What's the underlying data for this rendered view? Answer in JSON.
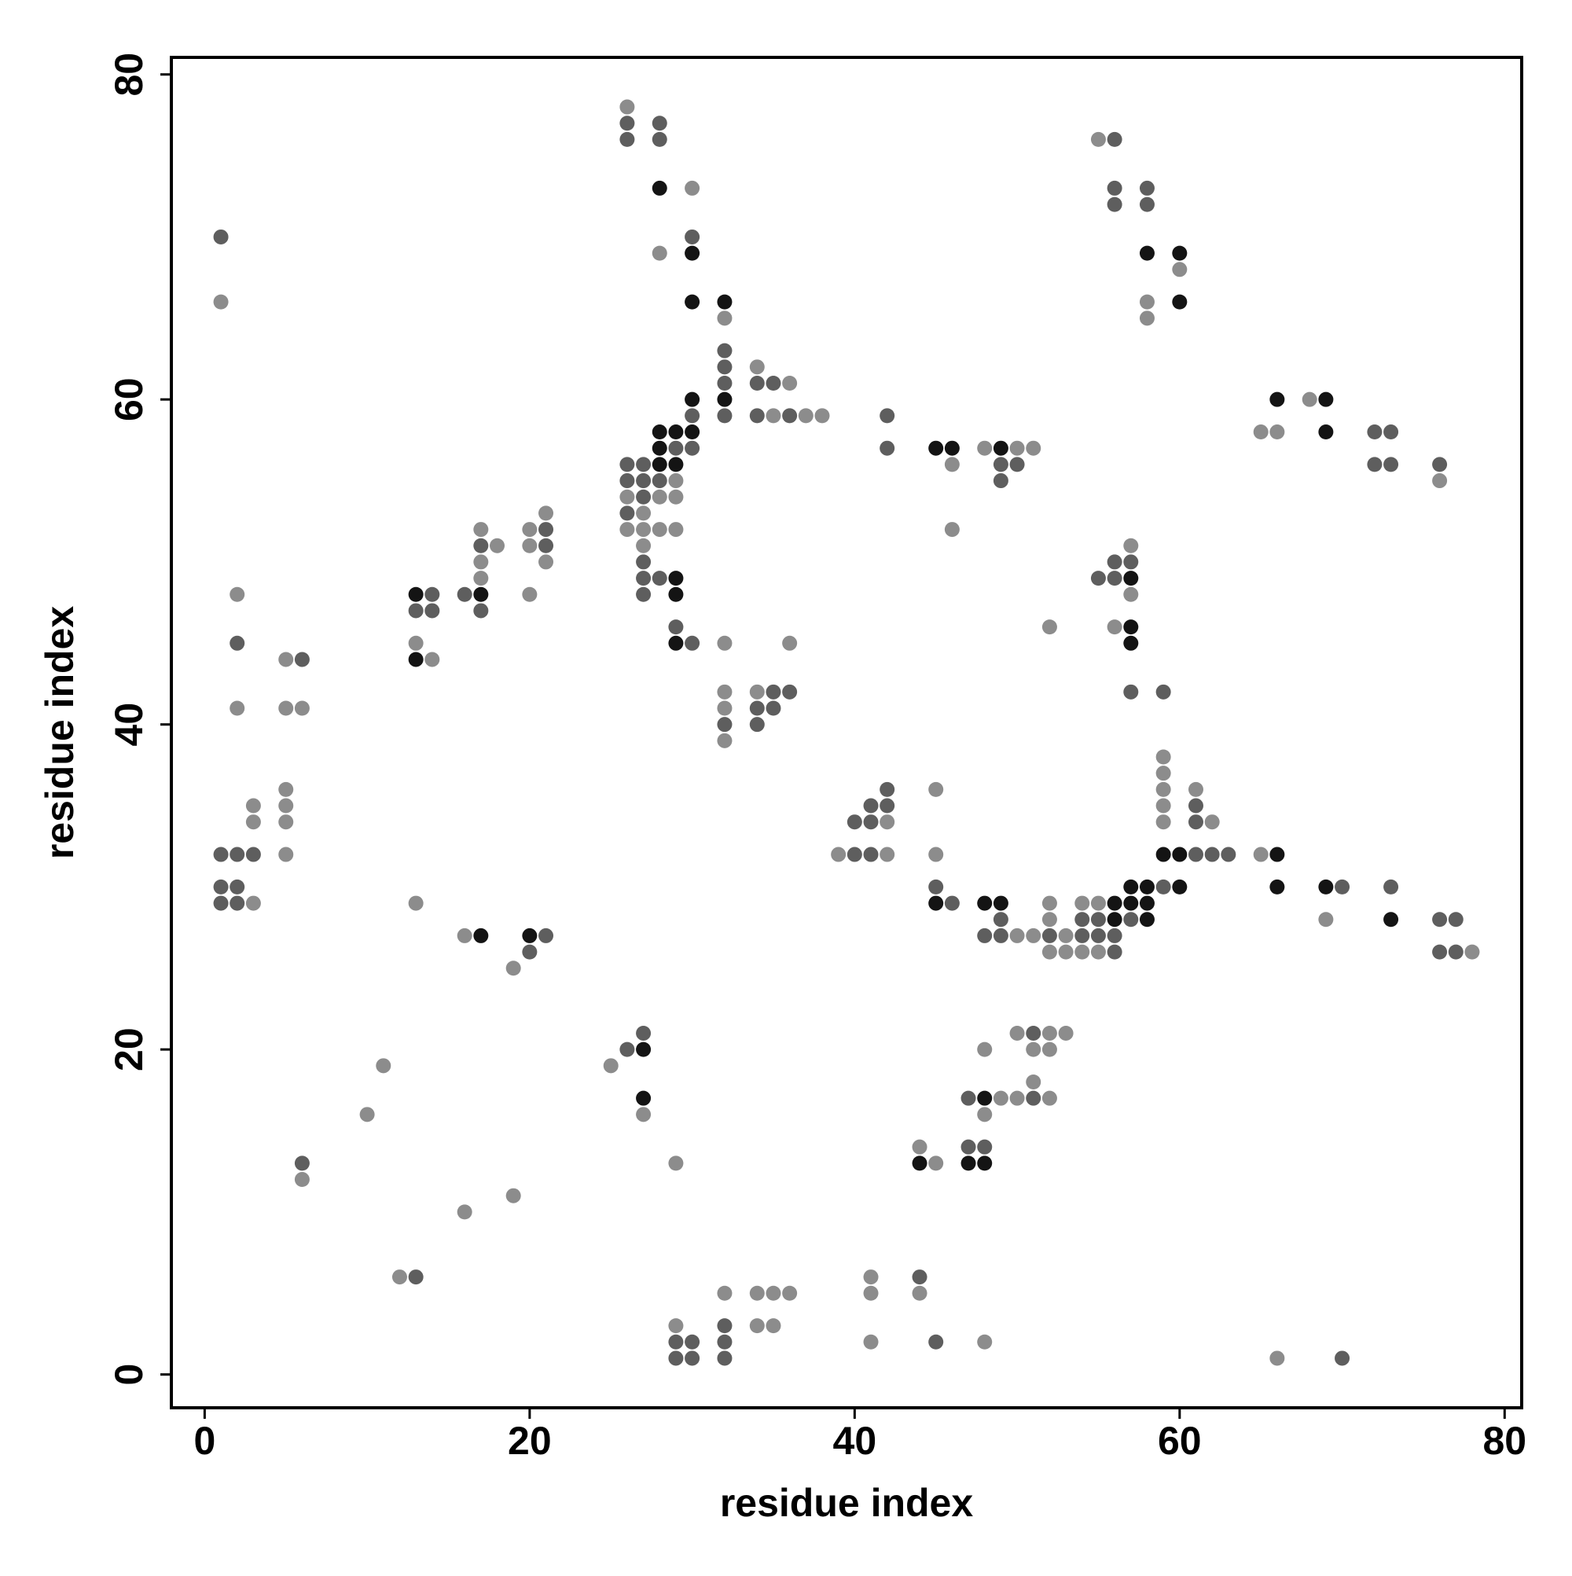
{
  "chart_data": {
    "type": "scatter",
    "x_label": "residue index",
    "y_label": "residue index",
    "xlim": [
      -2.05,
      81.05
    ],
    "ylim": [
      -2.05,
      81.05
    ],
    "xticks": [
      0,
      20,
      40,
      60,
      80
    ],
    "yticks": [
      0,
      20,
      40,
      60,
      80
    ],
    "series": [
      {
        "color": "#8c8c8c",
        "x": [
          1,
          2,
          2,
          3,
          3,
          3,
          5,
          5,
          6,
          5,
          5,
          5,
          5,
          6,
          11,
          10,
          12,
          13,
          14,
          13,
          17,
          18,
          17,
          17,
          20,
          21,
          20,
          21,
          20,
          16,
          19,
          19,
          16,
          25,
          27,
          29,
          29,
          32,
          34,
          35,
          36,
          34,
          35,
          41,
          41,
          41,
          44,
          48,
          66,
          26,
          30,
          28,
          32,
          34,
          36,
          35,
          37,
          38,
          29,
          26,
          28,
          29,
          27,
          26,
          27,
          28,
          29,
          27,
          32,
          36,
          32,
          34,
          32,
          32,
          46,
          46,
          48,
          50,
          51,
          55,
          60,
          58,
          58,
          65,
          66,
          68,
          76,
          52,
          57,
          57,
          56,
          59,
          59,
          59,
          59,
          59,
          61,
          62,
          65,
          69,
          78,
          55,
          54,
          52,
          52,
          53,
          51,
          50,
          52,
          53,
          54,
          55,
          45,
          45,
          39,
          42,
          42,
          50,
          52,
          53,
          51,
          52,
          48,
          49,
          50,
          52,
          51,
          48,
          44,
          45
        ],
        "values": [
          66,
          48,
          41,
          29,
          35,
          34,
          44,
          41,
          41,
          36,
          35,
          34,
          32,
          12,
          19,
          16,
          6,
          45,
          44,
          29,
          52,
          51,
          50,
          49,
          52,
          53,
          51,
          50,
          48,
          27,
          25,
          11,
          10,
          19,
          16,
          13,
          3,
          5,
          5,
          5,
          5,
          3,
          3,
          6,
          5,
          2,
          5,
          2,
          1,
          78,
          73,
          69,
          65,
          62,
          61,
          59,
          59,
          59,
          55,
          54,
          54,
          54,
          53,
          52,
          52,
          52,
          52,
          51,
          45,
          45,
          42,
          42,
          41,
          39,
          56,
          52,
          57,
          57,
          57,
          76,
          68,
          66,
          65,
          58,
          58,
          60,
          55,
          46,
          51,
          48,
          46,
          38,
          37,
          36,
          35,
          34,
          36,
          34,
          32,
          28,
          26,
          29,
          29,
          29,
          28,
          27,
          27,
          27,
          26,
          26,
          26,
          26,
          36,
          32,
          32,
          32,
          34,
          21,
          21,
          21,
          20,
          20,
          20,
          17,
          17,
          17,
          18,
          16,
          14,
          13
        ]
      },
      {
        "color": "#5e5e5e",
        "x": [
          1,
          2,
          1,
          2,
          3,
          1,
          2,
          1,
          2,
          6,
          6,
          13,
          14,
          13,
          14,
          16,
          17,
          17,
          21,
          21,
          21,
          20,
          26,
          27,
          29,
          30,
          29,
          30,
          32,
          32,
          32,
          44,
          45,
          70,
          26,
          26,
          28,
          28,
          30,
          32,
          32,
          32,
          32,
          34,
          35,
          34,
          36,
          30,
          30,
          29,
          26,
          27,
          26,
          27,
          28,
          27,
          26,
          27,
          27,
          28,
          27,
          29,
          30,
          35,
          36,
          34,
          35,
          32,
          34,
          42,
          42,
          49,
          50,
          49,
          56,
          56,
          56,
          58,
          58,
          72,
          73,
          72,
          73,
          76,
          56,
          57,
          55,
          56,
          57,
          59,
          61,
          61,
          61,
          62,
          63,
          59,
          70,
          73,
          76,
          77,
          76,
          77,
          57,
          54,
          55,
          52,
          54,
          55,
          56,
          49,
          48,
          56,
          49,
          45,
          46,
          40,
          41,
          40,
          41,
          41,
          42,
          42,
          51,
          47,
          51,
          47,
          48
        ],
        "values": [
          70,
          45,
          32,
          32,
          32,
          30,
          30,
          29,
          29,
          44,
          13,
          6,
          48,
          47,
          47,
          48,
          47,
          51,
          52,
          51,
          27,
          26,
          20,
          21,
          2,
          2,
          1,
          1,
          3,
          2,
          1,
          6,
          2,
          1,
          77,
          76,
          77,
          76,
          70,
          63,
          62,
          61,
          59,
          61,
          61,
          59,
          59,
          59,
          57,
          57,
          56,
          56,
          55,
          55,
          55,
          54,
          53,
          50,
          49,
          49,
          48,
          46,
          45,
          42,
          42,
          41,
          41,
          40,
          40,
          59,
          57,
          56,
          56,
          55,
          76,
          73,
          72,
          73,
          72,
          58,
          58,
          56,
          56,
          56,
          50,
          50,
          49,
          49,
          42,
          42,
          35,
          34,
          32,
          32,
          32,
          30,
          30,
          30,
          28,
          28,
          26,
          26,
          28,
          28,
          28,
          27,
          27,
          27,
          27,
          27,
          27,
          26,
          28,
          30,
          29,
          32,
          32,
          34,
          34,
          35,
          35,
          36,
          21,
          17,
          17,
          14,
          14
        ]
      },
      {
        "color": "#141414",
        "x": [
          13,
          13,
          17,
          17,
          20,
          27,
          27,
          28,
          30,
          30,
          32,
          32,
          30,
          30,
          28,
          29,
          28,
          28,
          29,
          29,
          29,
          29,
          45,
          46,
          49,
          58,
          60,
          60,
          66,
          69,
          69,
          57,
          57,
          57,
          59,
          60,
          60,
          66,
          66,
          69,
          73,
          57,
          58,
          56,
          57,
          58,
          56,
          58,
          48,
          49,
          45,
          48,
          44,
          47,
          48
        ],
        "values": [
          48,
          44,
          48,
          27,
          27,
          20,
          17,
          73,
          69,
          66,
          66,
          60,
          60,
          58,
          58,
          58,
          57,
          56,
          56,
          49,
          48,
          45,
          57,
          57,
          57,
          69,
          69,
          66,
          60,
          60,
          58,
          49,
          46,
          45,
          32,
          32,
          30,
          32,
          30,
          30,
          28,
          30,
          30,
          29,
          29,
          29,
          28,
          28,
          29,
          29,
          29,
          17,
          13,
          13,
          13
        ]
      }
    ]
  }
}
